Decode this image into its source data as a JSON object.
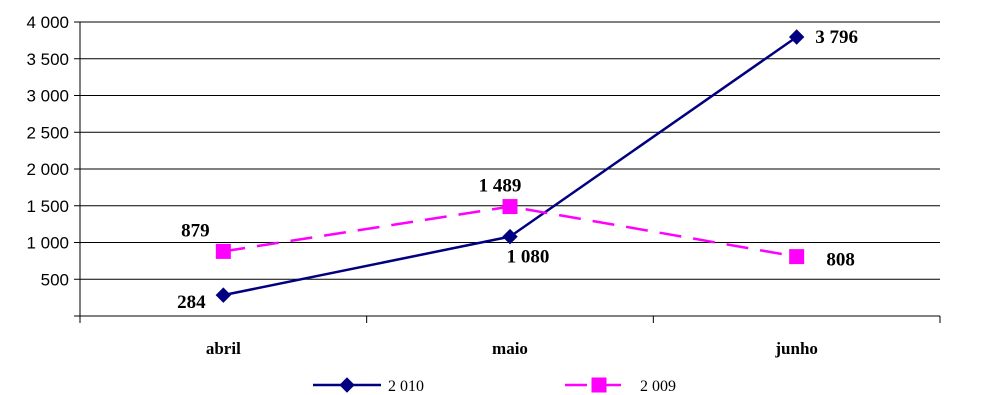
{
  "chart_data": {
    "type": "line",
    "categories": [
      "abril",
      "maio",
      "junho"
    ],
    "series": [
      {
        "name": "2 010",
        "values": [
          284,
          1080,
          3796
        ],
        "value_labels": [
          "284",
          "1 080",
          "3 796"
        ],
        "color": "#000080",
        "marker": "diamond",
        "line_style": "solid"
      },
      {
        "name": "2 009",
        "values": [
          879,
          1489,
          808
        ],
        "value_labels": [
          "879",
          "1 489",
          "808"
        ],
        "color": "#FF00FF",
        "marker": "square",
        "line_style": "dashed"
      }
    ],
    "y_ticks": [
      {
        "value": 500,
        "label": "500"
      },
      {
        "value": 1000,
        "label": "1 000"
      },
      {
        "value": 1500,
        "label": "1 500"
      },
      {
        "value": 2000,
        "label": "2 000"
      },
      {
        "value": 2500,
        "label": "2 500"
      },
      {
        "value": 3000,
        "label": "3 000"
      },
      {
        "value": 3500,
        "label": "3 500"
      },
      {
        "value": 4000,
        "label": "4 000"
      }
    ],
    "ylim": [
      0,
      4000
    ],
    "grid": true,
    "legend_position": "bottom",
    "title": "",
    "xlabel": "",
    "ylabel": ""
  }
}
